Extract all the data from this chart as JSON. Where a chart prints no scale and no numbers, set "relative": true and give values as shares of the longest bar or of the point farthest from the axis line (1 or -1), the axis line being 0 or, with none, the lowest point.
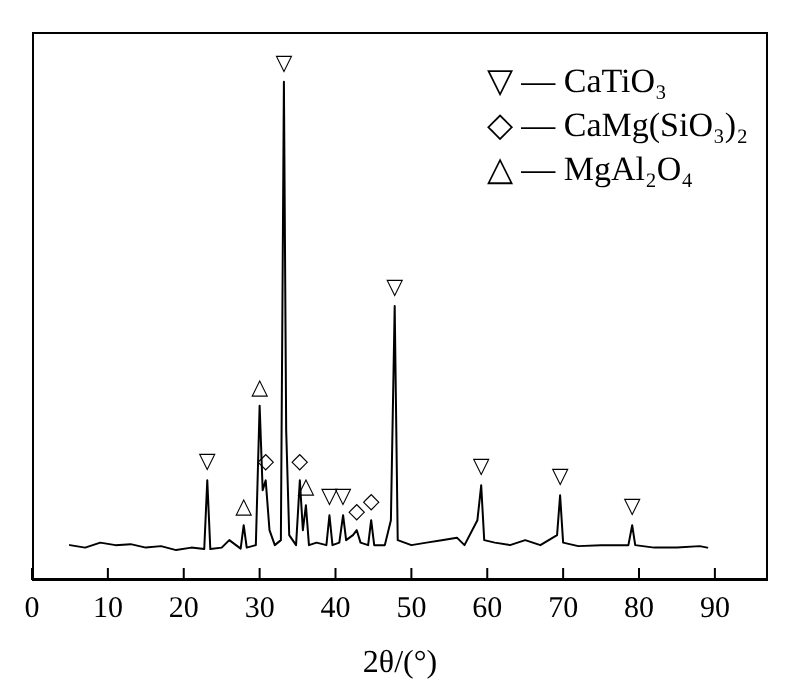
{
  "chart_data": {
    "type": "line",
    "relative": true,
    "xlabel": "2θ/(°)",
    "xlim": [
      0,
      97
    ],
    "xticks": [
      0,
      10,
      20,
      30,
      40,
      50,
      60,
      70,
      80,
      90
    ],
    "marker": "none",
    "line_style": "solid",
    "x": [
      5,
      7,
      9,
      11,
      13,
      15,
      17,
      19,
      21,
      22.7,
      23.1,
      23.5,
      25,
      26,
      27.5,
      27.9,
      28.3,
      29.5,
      30.0,
      30.4,
      30.8,
      31.3,
      32,
      32.8,
      33.2,
      33.5,
      33.9,
      34.8,
      35.3,
      35.7,
      36.1,
      36.5,
      37.5,
      38.8,
      39.2,
      39.6,
      40.5,
      41,
      41.4,
      42.3,
      42.8,
      43.3,
      44.3,
      44.7,
      45.1,
      46.5,
      47.3,
      47.8,
      48.2,
      50,
      52,
      54,
      56,
      57,
      58.7,
      59.2,
      59.6,
      61,
      63,
      65,
      67,
      69.2,
      69.6,
      70,
      72,
      75,
      78.6,
      79.1,
      79.5,
      82,
      85,
      88,
      89
    ],
    "series": [
      {
        "color": "#000000",
        "values": [
          0.07,
          0.065,
          0.075,
          0.07,
          0.072,
          0.065,
          0.068,
          0.06,
          0.065,
          0.062,
          0.2,
          0.062,
          0.065,
          0.08,
          0.063,
          0.11,
          0.065,
          0.07,
          0.35,
          0.18,
          0.2,
          0.1,
          0.07,
          0.08,
          1.0,
          0.3,
          0.09,
          0.07,
          0.2,
          0.1,
          0.15,
          0.07,
          0.075,
          0.07,
          0.13,
          0.07,
          0.075,
          0.13,
          0.08,
          0.09,
          0.1,
          0.075,
          0.07,
          0.12,
          0.07,
          0.07,
          0.12,
          0.55,
          0.08,
          0.07,
          0.075,
          0.08,
          0.085,
          0.07,
          0.12,
          0.19,
          0.08,
          0.075,
          0.07,
          0.08,
          0.07,
          0.09,
          0.17,
          0.075,
          0.068,
          0.07,
          0.07,
          0.11,
          0.07,
          0.065,
          0.065,
          0.068,
          0.065
        ]
      }
    ],
    "annotations": [
      "▽ — CaTiO₃",
      "◇ — CaMg(SiO₃)₂",
      "△ — MgAl₂O₄",
      {
        "text": "▽",
        "x": 23.1,
        "y": 0.2
      },
      {
        "text": "▽",
        "x": 33.2,
        "y": 1.0
      },
      {
        "text": "▽",
        "x": 39.2,
        "y": 0.13
      },
      {
        "text": "▽",
        "x": 41,
        "y": 0.13
      },
      {
        "text": "▽",
        "x": 47.8,
        "y": 0.55
      },
      {
        "text": "▽",
        "x": 59.2,
        "y": 0.19
      },
      {
        "text": "▽",
        "x": 69.6,
        "y": 0.17
      },
      {
        "text": "▽",
        "x": 79.1,
        "y": 0.11
      },
      {
        "text": "△",
        "x": 27.9,
        "y": 0.11
      },
      {
        "text": "△",
        "x": 30.0,
        "y": 0.35
      },
      {
        "text": "△",
        "x": 36.1,
        "y": 0.15
      },
      {
        "text": "◇",
        "x": 30.8,
        "y": 0.2
      },
      {
        "text": "◇",
        "x": 35.3,
        "y": 0.2
      },
      {
        "text": "◇",
        "x": 42.8,
        "y": 0.1
      },
      {
        "text": "◇",
        "x": 44.7,
        "y": 0.12
      }
    ]
  }
}
